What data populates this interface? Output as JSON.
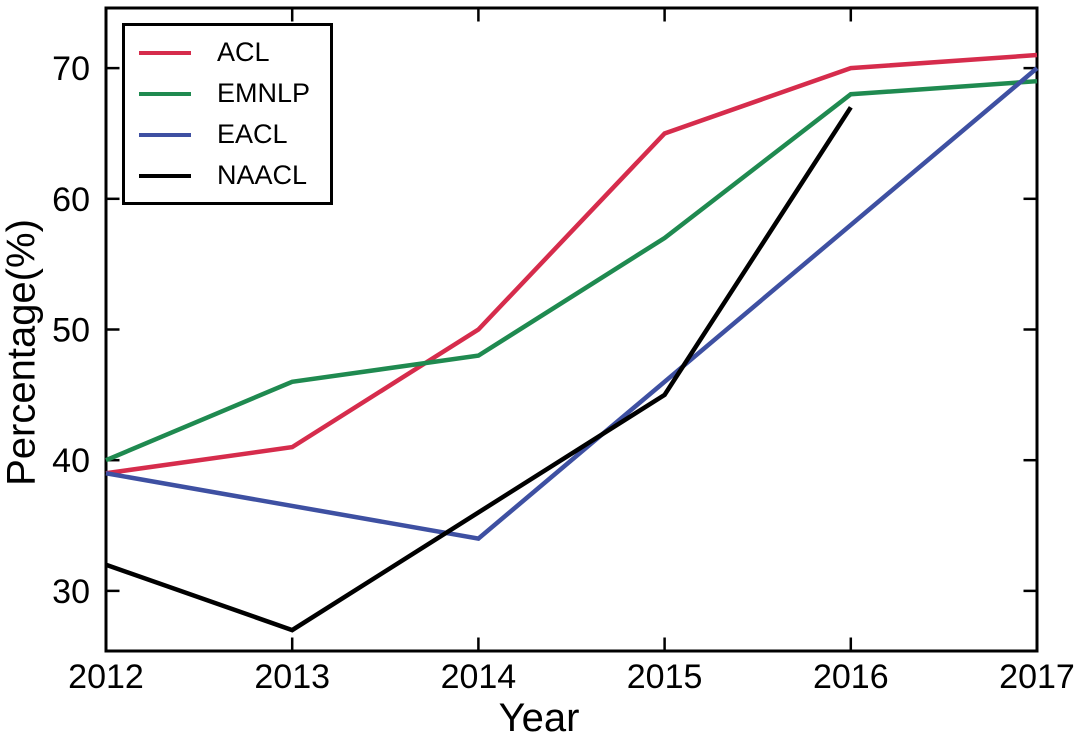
{
  "chart_data": {
    "type": "line",
    "title": "",
    "xlabel": "Year",
    "ylabel": "Percentage(%)",
    "xlim": [
      2012,
      2017
    ],
    "ylim": [
      25.4,
      74.6
    ],
    "xticks": [
      2012,
      2013,
      2014,
      2015,
      2016,
      2017
    ],
    "xtick_labels": [
      "2012",
      "2013",
      "2014",
      "2015",
      "2016",
      "2017"
    ],
    "yticks": [
      30,
      40,
      50,
      60,
      70
    ],
    "ytick_labels": [
      "30",
      "40",
      "50",
      "60",
      "70"
    ],
    "grid": false,
    "legend_position": "upper-left",
    "background_color": "#ffffff",
    "axis_color": "#000000",
    "series": [
      {
        "name": "ACL",
        "color": "#d62c4c",
        "points": [
          [
            2012,
            39
          ],
          [
            2013,
            41
          ],
          [
            2014,
            50
          ],
          [
            2015,
            65
          ],
          [
            2016,
            70
          ],
          [
            2017,
            71
          ]
        ]
      },
      {
        "name": "EMNLP",
        "color": "#1f8a50",
        "points": [
          [
            2012,
            40
          ],
          [
            2013,
            46
          ],
          [
            2014,
            48
          ],
          [
            2015,
            57
          ],
          [
            2016,
            68
          ],
          [
            2017,
            69
          ]
        ]
      },
      {
        "name": "EACL",
        "color": "#3e50a2",
        "points": [
          [
            2012,
            39
          ],
          [
            2014,
            34
          ],
          [
            2017,
            70
          ]
        ]
      },
      {
        "name": "NAACL",
        "color": "#000000",
        "points": [
          [
            2012,
            32
          ],
          [
            2013,
            27
          ],
          [
            2015,
            45
          ],
          [
            2016,
            67
          ]
        ]
      }
    ]
  }
}
